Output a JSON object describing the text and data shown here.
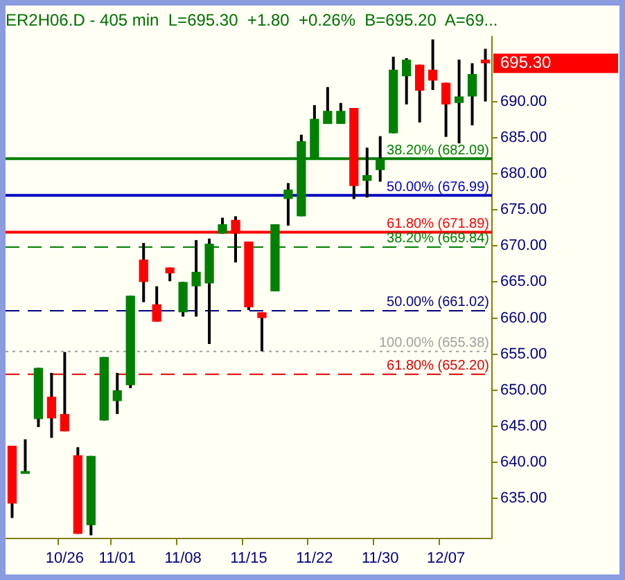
{
  "chart_data": {
    "type": "candlestick",
    "title": "ER2H06.D - 405 min  L=695.30  +1.80  +0.26%  B=695.20  A=69...",
    "categories": [
      null,
      null,
      null,
      null,
      "10/26",
      null,
      null,
      null,
      "11/01",
      null,
      null,
      null,
      null,
      "11/08",
      null,
      null,
      null,
      null,
      "11/15",
      null,
      null,
      null,
      null,
      "11/22",
      null,
      null,
      null,
      null,
      "11/30",
      null,
      null,
      null,
      null,
      "12/07",
      null,
      null,
      null
    ],
    "ohlc": [
      [
        642.3,
        642.3,
        632.3,
        634.3
      ],
      [
        638.6,
        643.2,
        638.5,
        638.8
      ],
      [
        646.0,
        653.1,
        644.9,
        653.1
      ],
      [
        649.1,
        652.4,
        643.4,
        646.1
      ],
      [
        646.7,
        655.3,
        644.3,
        644.3
      ],
      [
        641.0,
        642.1,
        630.1,
        630.1
      ],
      [
        631.3,
        640.9,
        629.9,
        640.9
      ],
      [
        645.8,
        654.6,
        645.8,
        654.6
      ],
      [
        648.5,
        652.4,
        646.7,
        650.0
      ],
      [
        650.7,
        663.1,
        650.3,
        663.1
      ],
      [
        668.1,
        670.4,
        662.2,
        665.0
      ],
      [
        661.9,
        664.4,
        659.5,
        659.5
      ],
      [
        667.0,
        667.0,
        665.1,
        666.2
      ],
      [
        660.8,
        665.0,
        660.2,
        665.0
      ],
      [
        664.4,
        670.8,
        660.2,
        666.4
      ],
      [
        664.8,
        671.0,
        656.4,
        670.3
      ],
      [
        671.7,
        673.9,
        671.7,
        673.0
      ],
      [
        673.6,
        674.1,
        667.7,
        671.7
      ],
      [
        670.6,
        670.6,
        661.1,
        661.5
      ],
      [
        660.8,
        660.8,
        655.4,
        660.0
      ],
      [
        663.7,
        673.0,
        663.7,
        673.0
      ],
      [
        676.5,
        678.7,
        672.8,
        677.8
      ],
      [
        674.1,
        685.4,
        674.1,
        684.5
      ],
      [
        682.1,
        689.5,
        682.1,
        687.6
      ],
      [
        686.9,
        692.0,
        686.9,
        688.7
      ],
      [
        686.9,
        689.8,
        686.9,
        688.7
      ],
      [
        689.1,
        689.1,
        676.5,
        678.3
      ],
      [
        679.0,
        683.6,
        676.7,
        679.8
      ],
      [
        680.5,
        685.2,
        678.9,
        682.1
      ],
      [
        685.6,
        696.2,
        685.6,
        694.4
      ],
      [
        693.5,
        696.0,
        689.6,
        695.8
      ],
      [
        695.1,
        695.1,
        687.1,
        691.5
      ],
      [
        694.4,
        698.6,
        691.6,
        692.9
      ],
      [
        692.6,
        692.6,
        685.1,
        689.6
      ],
      [
        689.8,
        695.8,
        684.2,
        690.7
      ],
      [
        690.7,
        695.3,
        686.7,
        693.8
      ],
      [
        695.8,
        697.3,
        690.0,
        695.3
      ]
    ],
    "colors": [
      "#ff0000",
      "#008000",
      "#008000",
      "#ff0000",
      "#ff0000",
      "#ff0000",
      "#008000",
      "#008000",
      "#008000",
      "#008000",
      "#ff0000",
      "#ff0000",
      "#ff0000",
      "#008000",
      "#008000",
      "#008000",
      "#008000",
      "#ff0000",
      "#ff0000",
      "#ff0000",
      "#008000",
      "#008000",
      "#008000",
      "#008000",
      "#008000",
      "#008000",
      "#ff0000",
      "#008000",
      "#008000",
      "#008000",
      "#008000",
      "#ff0000",
      "#ff0000",
      "#ff0000",
      "#008000",
      "#008000",
      "#ff0000"
    ],
    "ylim": [
      629.5,
      699
    ],
    "yticks": [
      {
        "value": 635,
        "label": "635.00"
      },
      {
        "value": 640,
        "label": "640.00"
      },
      {
        "value": 645,
        "label": "645.00"
      },
      {
        "value": 650,
        "label": "650.00"
      },
      {
        "value": 655,
        "label": "655.00"
      },
      {
        "value": 660,
        "label": "660.00"
      },
      {
        "value": 665,
        "label": "665.00"
      },
      {
        "value": 670,
        "label": "670.00"
      },
      {
        "value": 675,
        "label": "675.00"
      },
      {
        "value": 680,
        "label": "680.00"
      },
      {
        "value": 685,
        "label": "685.00"
      },
      {
        "value": 690,
        "label": "690.00"
      }
    ],
    "ref_lines": [
      {
        "axis": "y",
        "value": 682.09,
        "label": "38.20% (682.09)",
        "color": "#008000",
        "line_style": "solid"
      },
      {
        "axis": "y",
        "value": 676.99,
        "label": "50.00% (676.99)",
        "color": "#0000c0",
        "line_style": "solid"
      },
      {
        "axis": "y",
        "value": 671.89,
        "label": "61.80% (671.89)",
        "color": "#ff0000",
        "line_style": "solid"
      },
      {
        "axis": "y",
        "value": 669.84,
        "label": "38.20% (669.84)",
        "color": "#008000",
        "line_style": "dashed"
      },
      {
        "axis": "y",
        "value": 661.02,
        "label": "50.00% (661.02)",
        "color": "#000080",
        "line_style": "dashed"
      },
      {
        "axis": "y",
        "value": 655.38,
        "label": "100.00% (655.38)",
        "color": "#a0a0a0",
        "line_style": "dotted"
      },
      {
        "axis": "y",
        "value": 652.2,
        "label": "61.80% (652.20)",
        "color": "#e00000",
        "line_style": "dashed"
      }
    ],
    "annotations": [
      "695.30"
    ],
    "grid": false,
    "legend": false
  }
}
